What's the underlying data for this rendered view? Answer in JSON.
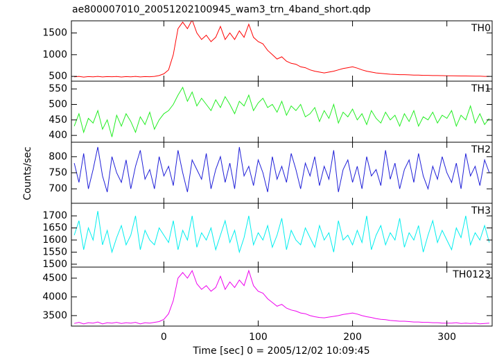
{
  "chart_data": {
    "type": "line",
    "title": "ae800007010_20051202100945_wam3_trn_4band_short.qdp",
    "xlabel": "Time [sec] 0 = 2005/12/02 10:09:45",
    "ylabel": "Counts/sec",
    "xlim": [
      -98,
      348
    ],
    "xticks": [
      0,
      100,
      200,
      300
    ],
    "x": [
      -95,
      -90,
      -85,
      -80,
      -75,
      -70,
      -65,
      -60,
      -55,
      -50,
      -45,
      -40,
      -35,
      -30,
      -25,
      -20,
      -15,
      -10,
      -5,
      0,
      5,
      10,
      15,
      20,
      25,
      30,
      35,
      40,
      45,
      50,
      55,
      60,
      65,
      70,
      75,
      80,
      85,
      90,
      95,
      100,
      105,
      110,
      115,
      120,
      125,
      130,
      135,
      140,
      145,
      150,
      155,
      160,
      165,
      170,
      175,
      180,
      185,
      190,
      195,
      200,
      205,
      210,
      215,
      220,
      225,
      230,
      235,
      240,
      245,
      250,
      255,
      260,
      265,
      270,
      275,
      280,
      285,
      290,
      295,
      300,
      305,
      310,
      315,
      320,
      325,
      330,
      335,
      340,
      345
    ],
    "series": [
      {
        "name": "TH0",
        "color": "#ff0000",
        "ylim": [
          390,
          1780
        ],
        "yticks": [
          500,
          1000,
          1500
        ],
        "values": [
          490,
          500,
          485,
          495,
          490,
          500,
          488,
          495,
          492,
          498,
          486,
          495,
          490,
          500,
          488,
          495,
          492,
          500,
          520,
          560,
          650,
          1000,
          1600,
          1750,
          1600,
          1800,
          1500,
          1350,
          1450,
          1300,
          1400,
          1650,
          1350,
          1500,
          1350,
          1550,
          1400,
          1700,
          1400,
          1300,
          1250,
          1100,
          1000,
          900,
          950,
          850,
          800,
          780,
          720,
          700,
          650,
          620,
          600,
          580,
          600,
          620,
          650,
          680,
          700,
          720,
          690,
          650,
          620,
          600,
          580,
          570,
          560,
          550,
          545,
          540,
          540,
          535,
          530,
          530,
          525,
          525,
          520,
          520,
          518,
          515,
          515,
          512,
          510,
          510,
          508,
          505,
          505,
          500,
          500
        ]
      },
      {
        "name": "TH1",
        "color": "#22ee22",
        "ylim": [
          378,
          575
        ],
        "yticks": [
          400,
          450,
          500,
          550
        ],
        "values": [
          430,
          470,
          410,
          455,
          440,
          480,
          420,
          450,
          395,
          465,
          430,
          470,
          445,
          410,
          460,
          435,
          475,
          420,
          450,
          470,
          480,
          500,
          530,
          555,
          510,
          540,
          495,
          520,
          500,
          480,
          515,
          490,
          525,
          500,
          470,
          510,
          495,
          530,
          480,
          505,
          520,
          490,
          500,
          475,
          510,
          465,
          495,
          480,
          500,
          460,
          470,
          490,
          445,
          480,
          455,
          500,
          440,
          475,
          460,
          485,
          450,
          470,
          435,
          480,
          455,
          440,
          475,
          450,
          465,
          430,
          470,
          445,
          480,
          430,
          460,
          450,
          475,
          440,
          465,
          455,
          480,
          430,
          465,
          450,
          495,
          440,
          470,
          435,
          455
        ]
      },
      {
        "name": "TH2",
        "color": "#1e1ed8",
        "ylim": [
          655,
          845
        ],
        "yticks": [
          700,
          750,
          800
        ],
        "values": [
          780,
          720,
          810,
          700,
          760,
          830,
          740,
          690,
          800,
          750,
          720,
          790,
          700,
          770,
          820,
          730,
          760,
          700,
          800,
          740,
          770,
          710,
          820,
          750,
          690,
          790,
          760,
          730,
          810,
          700,
          760,
          800,
          720,
          780,
          700,
          830,
          740,
          770,
          710,
          790,
          750,
          690,
          800,
          730,
          770,
          720,
          810,
          760,
          700,
          780,
          740,
          800,
          710,
          770,
          730,
          820,
          690,
          760,
          790,
          720,
          770,
          700,
          800,
          740,
          760,
          710,
          820,
          730,
          780,
          700,
          760,
          790,
          720,
          810,
          740,
          700,
          770,
          730,
          800,
          750,
          720,
          780,
          700,
          810,
          740,
          770,
          710,
          790,
          750
        ]
      },
      {
        "name": "TH3",
        "color": "#00eeee",
        "ylim": [
          1488,
          1752
        ],
        "yticks": [
          1500,
          1550,
          1600,
          1650,
          1700
        ],
        "values": [
          1620,
          1680,
          1560,
          1650,
          1600,
          1720,
          1580,
          1640,
          1550,
          1610,
          1660,
          1580,
          1620,
          1700,
          1560,
          1640,
          1600,
          1580,
          1650,
          1620,
          1590,
          1680,
          1560,
          1640,
          1600,
          1700,
          1570,
          1630,
          1600,
          1650,
          1560,
          1620,
          1680,
          1590,
          1640,
          1550,
          1610,
          1700,
          1580,
          1630,
          1600,
          1660,
          1570,
          1620,
          1690,
          1560,
          1640,
          1600,
          1580,
          1650,
          1610,
          1570,
          1660,
          1600,
          1630,
          1550,
          1680,
          1600,
          1620,
          1580,
          1640,
          1590,
          1700,
          1560,
          1620,
          1660,
          1580,
          1630,
          1600,
          1690,
          1570,
          1630,
          1600,
          1660,
          1550,
          1620,
          1680,
          1590,
          1640,
          1600,
          1560,
          1650,
          1610,
          1700,
          1580,
          1630,
          1600,
          1660,
          1590
        ]
      },
      {
        "name": "TH0123",
        "color": "#ee00ee",
        "ylim": [
          3220,
          4795
        ],
        "yticks": [
          3500,
          4000,
          4500
        ],
        "values": [
          3290,
          3320,
          3280,
          3310,
          3300,
          3330,
          3280,
          3310,
          3300,
          3320,
          3290,
          3310,
          3300,
          3320,
          3280,
          3310,
          3300,
          3320,
          3340,
          3400,
          3550,
          3900,
          4500,
          4650,
          4500,
          4700,
          4350,
          4200,
          4300,
          4150,
          4250,
          4550,
          4200,
          4400,
          4250,
          4450,
          4300,
          4700,
          4300,
          4150,
          4100,
          3950,
          3850,
          3750,
          3800,
          3700,
          3650,
          3620,
          3570,
          3550,
          3500,
          3470,
          3450,
          3440,
          3460,
          3480,
          3500,
          3530,
          3550,
          3570,
          3540,
          3500,
          3470,
          3450,
          3420,
          3400,
          3390,
          3370,
          3360,
          3350,
          3350,
          3340,
          3330,
          3330,
          3320,
          3320,
          3310,
          3310,
          3300,
          3300,
          3300,
          3310,
          3290,
          3300,
          3290,
          3300,
          3280,
          3290,
          3300
        ]
      }
    ]
  }
}
